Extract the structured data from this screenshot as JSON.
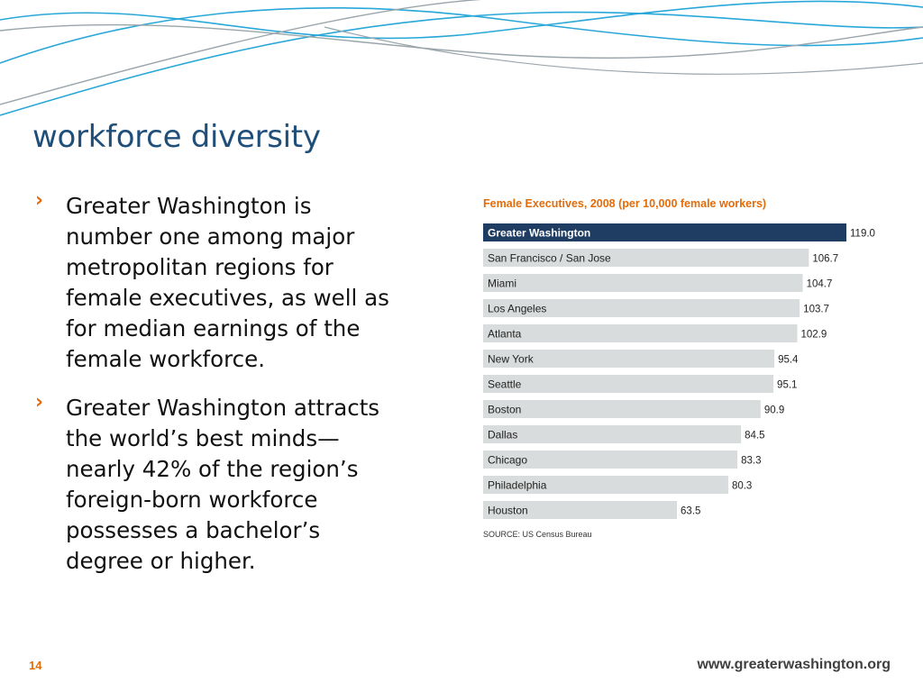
{
  "slide": {
    "title": "workforce diversity",
    "bullets": [
      {
        "marker": "›",
        "text": "Greater Washington is number one among major metropolitan regions for female executives, as well as for median earnings of the female workforce."
      },
      {
        "marker": "›",
        "text": "Greater Washington attracts the world’s best minds—nearly 42% of the region’s foreign-born workforce possesses a bachelor’s degree or higher."
      }
    ],
    "page_number": "14",
    "footer_url": "www.greaterwashington.org"
  },
  "colors": {
    "title": "#1f4e79",
    "bullet_marker": "#e36c0a",
    "chart_title": "#e36c0a",
    "highlight_bar": "#1f3d63",
    "bar": "#d9dcdc",
    "wave_blue": "#29a7d8",
    "wave_gray": "#9aa5ab"
  },
  "chart_data": {
    "type": "bar",
    "orientation": "horizontal",
    "title": "Female Executives, 2008 (per 10,000 female workers)",
    "source": "SOURCE:  US Census Bureau",
    "categories": [
      "Greater Washington",
      "San Francisco / San Jose",
      "Miami",
      "Los Angeles",
      "Atlanta",
      "New York",
      "Seattle",
      "Boston",
      "Dallas",
      "Chicago",
      "Philadelphia",
      "Houston"
    ],
    "values": [
      119.0,
      106.7,
      104.7,
      103.7,
      102.9,
      95.4,
      95.1,
      90.9,
      84.5,
      83.3,
      80.3,
      63.5
    ],
    "value_labels": [
      "119.0",
      "106.7",
      "104.7",
      "103.7",
      "102.9",
      "95.4",
      "95.1",
      "90.9",
      "84.5",
      "83.3",
      "80.3",
      "63.5"
    ],
    "highlight": "Greater Washington",
    "xlim": [
      0,
      119.0
    ],
    "grid": false
  }
}
